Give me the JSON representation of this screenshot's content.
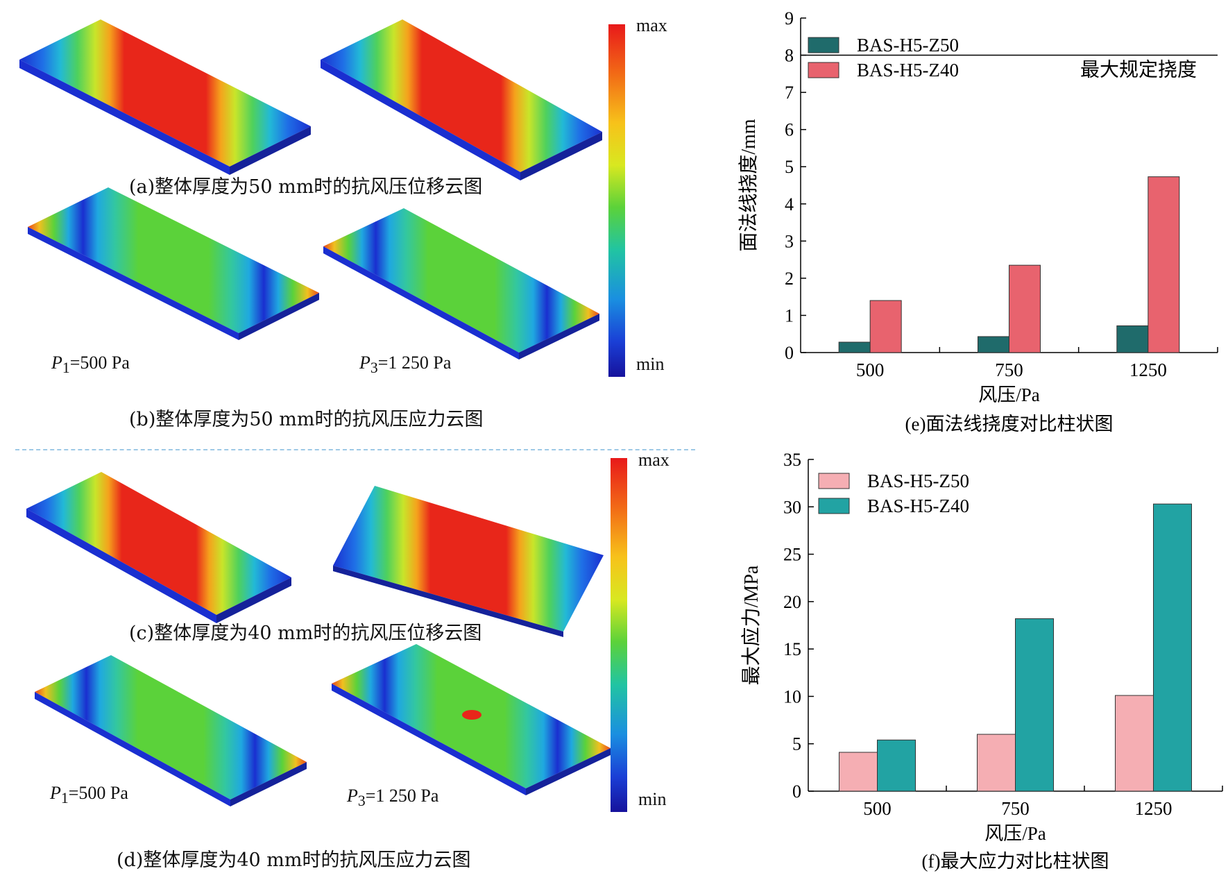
{
  "left_panels": {
    "colorbar_max": "max",
    "colorbar_min": "min",
    "caption_a": "(a)整体厚度为50 mm时的抗风压位移云图",
    "caption_b": "(b)整体厚度为50 mm时的抗风压应力云图",
    "caption_c": "(c)整体厚度为40 mm时的抗风压位移云图",
    "caption_d": "(d)整体厚度为40 mm时的抗风压应力云图",
    "p1_text": "=500 Pa",
    "p3_text": "=1 250 Pa",
    "p_symbol": "P",
    "p1_sub": "1",
    "p3_sub": "3"
  },
  "chart_data": [
    {
      "type": "bar",
      "categories": [
        "500",
        "750",
        "1250"
      ],
      "series": [
        {
          "name": "BAS-H5-Z50",
          "values": [
            0.28,
            0.43,
            0.72
          ],
          "color": "#1f6b6b"
        },
        {
          "name": "BAS-H5-Z40",
          "values": [
            1.4,
            2.35,
            4.73
          ],
          "color": "#e8636e"
        }
      ],
      "xlabel": "风压/Pa",
      "ylabel": "面法线挠度/mm",
      "ylim": [
        0,
        9
      ],
      "yticks": [
        0,
        1,
        2,
        3,
        4,
        5,
        6,
        7,
        8,
        9
      ],
      "reference_line": {
        "value": 8,
        "label": "最大规定挠度"
      },
      "legend_placement": "top-left",
      "caption": "(e)面法线挠度对比柱状图"
    },
    {
      "type": "bar",
      "categories": [
        "500",
        "750",
        "1250"
      ],
      "series": [
        {
          "name": "BAS-H5-Z50",
          "values": [
            4.1,
            6.0,
            10.1
          ],
          "color": "#f5aeb3"
        },
        {
          "name": "BAS-H5-Z40",
          "values": [
            5.4,
            18.2,
            30.3
          ],
          "color": "#22a3a3"
        }
      ],
      "xlabel": "风压/Pa",
      "ylabel": "最大应力/MPa",
      "ylim": [
        0,
        35
      ],
      "yticks": [
        0,
        5,
        10,
        15,
        20,
        25,
        30,
        35
      ],
      "legend_placement": "top-left",
      "caption": "(f)最大应力对比柱状图"
    }
  ]
}
